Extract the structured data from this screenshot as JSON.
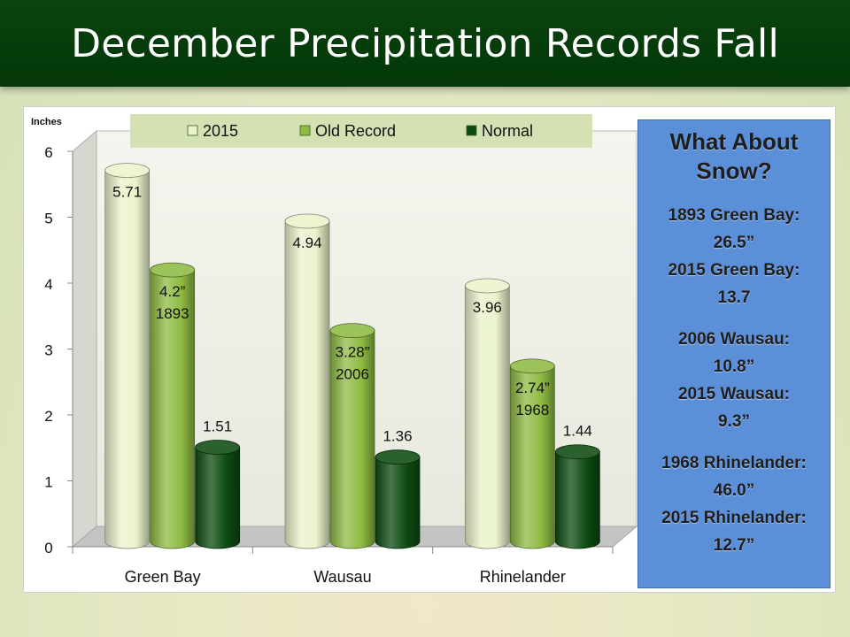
{
  "title": "December Precipitation Records Fall",
  "chart_data": {
    "type": "bar",
    "ylabel": "Inches",
    "ylim": [
      0,
      6
    ],
    "yticks": [
      "0",
      "1",
      "2",
      "3",
      "4",
      "5",
      "6"
    ],
    "categories": [
      "Green Bay",
      "Wausau",
      "Rhinelander"
    ],
    "legend_position": "top",
    "series": [
      {
        "name": "2015",
        "values": [
          5.71,
          4.94,
          3.96
        ],
        "labels": [
          [
            "5.71"
          ],
          [
            "4.94"
          ],
          [
            "3.96"
          ]
        ],
        "color": "#eaf3cc"
      },
      {
        "name": "Old Record",
        "values": [
          4.2,
          3.28,
          2.74
        ],
        "labels": [
          [
            "4.2”",
            "1893"
          ],
          [
            "3.28”",
            "2006"
          ],
          [
            "2.74”",
            "1968"
          ]
        ],
        "color": "#8fbb43"
      },
      {
        "name": "Normal",
        "values": [
          1.51,
          1.36,
          1.44
        ],
        "labels": [
          [
            "1.51"
          ],
          [
            "1.36"
          ],
          [
            "1.44"
          ]
        ],
        "color": "#0e4b12"
      }
    ]
  },
  "snow": {
    "title": [
      "What About",
      "Snow?"
    ],
    "groups": [
      [
        "1893 Green Bay:",
        "26.5”",
        "2015 Green Bay:",
        "13.7"
      ],
      [
        "2006 Wausau:",
        "10.8”",
        "2015 Wausau:",
        "9.3”"
      ],
      [
        "1968 Rhinelander:",
        "46.0”",
        "2015 Rhinelander:",
        "12.7”"
      ]
    ]
  }
}
